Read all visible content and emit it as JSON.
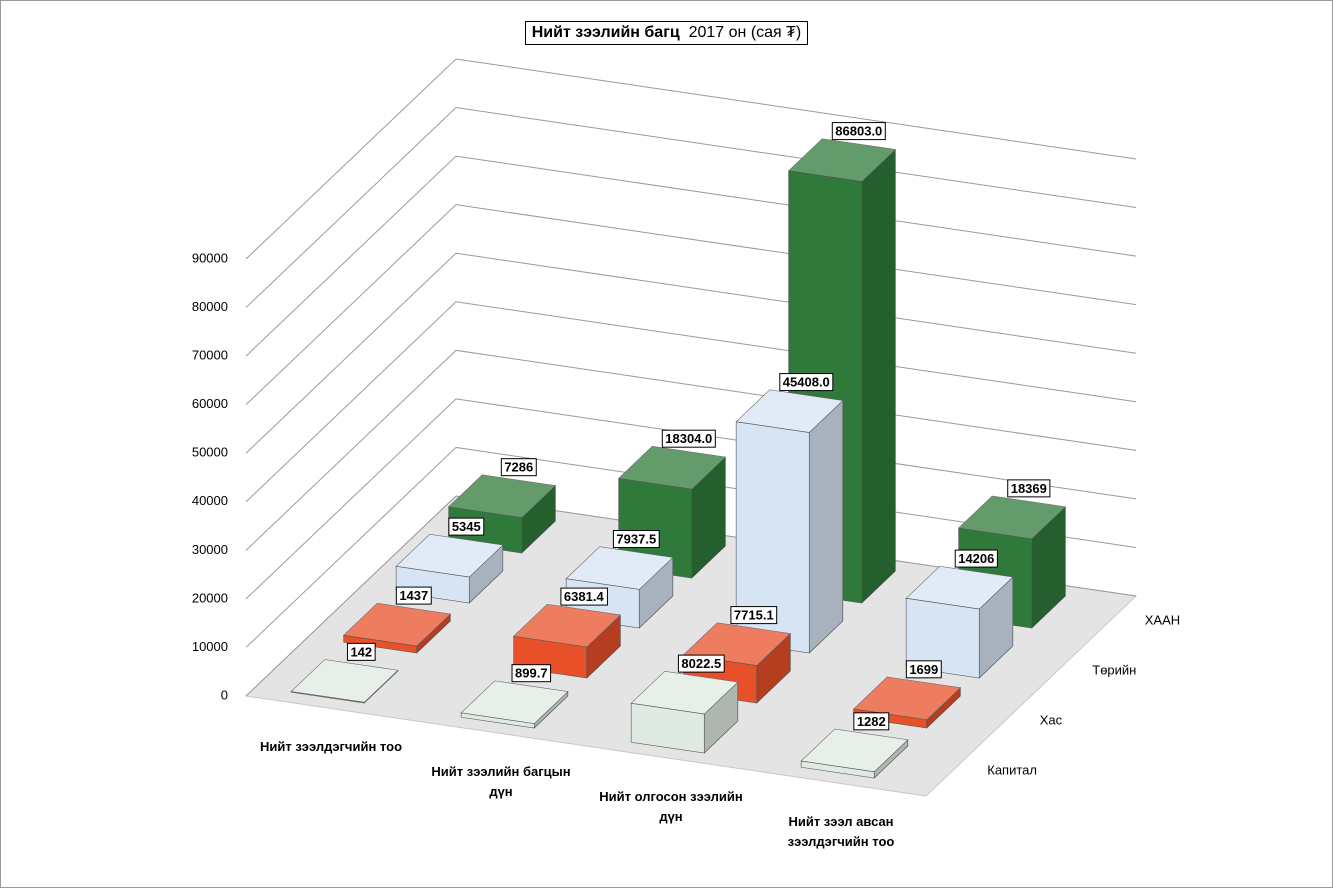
{
  "chart_data": {
    "type": "bar3d",
    "title": "Нийт зээлийн багц",
    "subtitle": "2017 он (сая ₮)",
    "categories": [
      "Нийт зээлдэгчийн тоо",
      "Нийт зээлийн багцын дүн",
      "Нийт олгосон зээлийн дүн",
      "Нийт зээл авсан зээлдэгчийн тоо"
    ],
    "series": [
      {
        "name": "Капитал",
        "color": "#dfeae2",
        "values": [
          142,
          899.7,
          8022.5,
          1282
        ],
        "value_labels": [
          "142",
          "899.7",
          "8022.5",
          "1282"
        ]
      },
      {
        "name": "Хас",
        "color": "#e8502a",
        "values": [
          1437,
          6381.4,
          7715.1,
          1699
        ],
        "value_labels": [
          "1437",
          "6381.4",
          "7715.1",
          "1699"
        ]
      },
      {
        "name": "Төрийн",
        "color": "#d6e4f4",
        "values": [
          5345,
          7937.5,
          45408.0,
          14206
        ],
        "value_labels": [
          "5345",
          "7937.5",
          "45408.0",
          "14206"
        ]
      },
      {
        "name": "ХААН",
        "color": "#2f7a3a",
        "values": [
          7286,
          18304.0,
          86803.0,
          18369
        ],
        "value_labels": [
          "7286",
          "18304.0",
          "86803.0",
          "18369"
        ]
      }
    ],
    "ylim": [
      0,
      90000
    ],
    "yticks": [
      0,
      10000,
      20000,
      30000,
      40000,
      50000,
      60000,
      70000,
      80000,
      90000
    ],
    "grid": true
  }
}
